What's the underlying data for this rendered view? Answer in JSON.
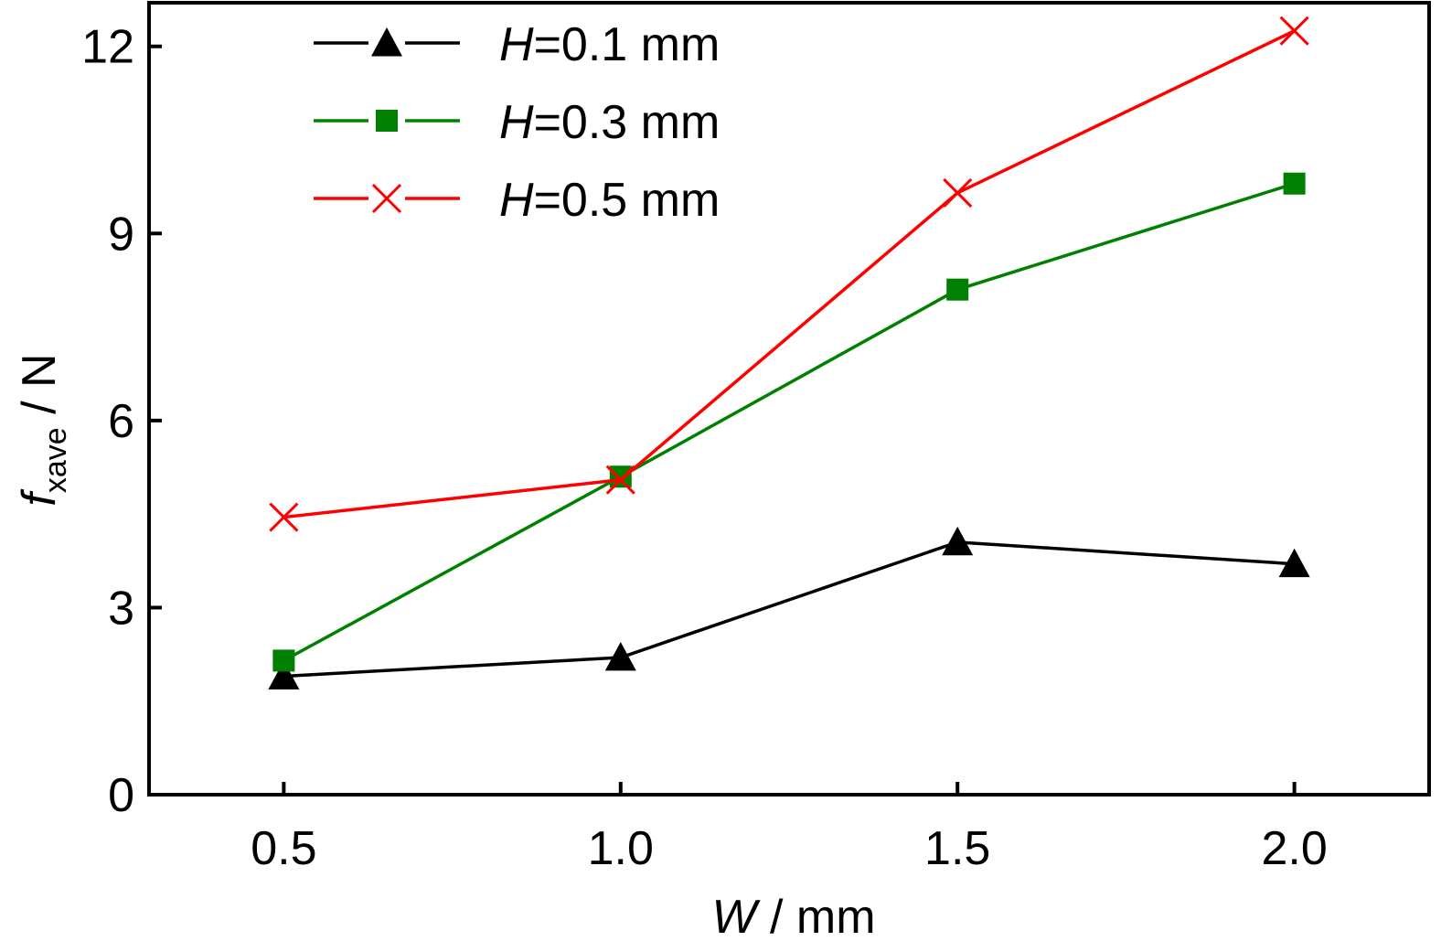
{
  "chart_data": {
    "type": "line",
    "x": [
      0.5,
      1.0,
      1.5,
      2.0
    ],
    "x_tick_labels": [
      "0.5",
      "1.0",
      "1.5",
      "2.0"
    ],
    "y_ticks": [
      0,
      3,
      6,
      9,
      12
    ],
    "y_tick_labels": [
      "0",
      "3",
      "6",
      "9",
      "12"
    ],
    "xlim": [
      0.3,
      2.2
    ],
    "ylim": [
      0,
      12.7
    ],
    "xlabel": {
      "var": "W",
      "rest": " / mm"
    },
    "ylabel": {
      "var": "f",
      "sub": "xave",
      "rest": " / N"
    },
    "series": [
      {
        "name": "H=0.1 mm",
        "name_var": "H",
        "name_rest": "=0.1 mm",
        "marker": "triangle",
        "color": "#000000",
        "values": [
          1.9,
          2.2,
          4.05,
          3.7
        ]
      },
      {
        "name": "H=0.3 mm",
        "name_var": "H",
        "name_rest": "=0.3 mm",
        "marker": "square",
        "color": "#008000",
        "values": [
          2.15,
          5.1,
          8.1,
          9.8
        ]
      },
      {
        "name": "H=0.5 mm",
        "name_var": "H",
        "name_rest": "=0.5 mm",
        "marker": "x",
        "color": "#ff0000",
        "values": [
          4.45,
          5.05,
          9.65,
          12.25
        ]
      }
    ],
    "legend_position": "top-left",
    "grid": false
  }
}
